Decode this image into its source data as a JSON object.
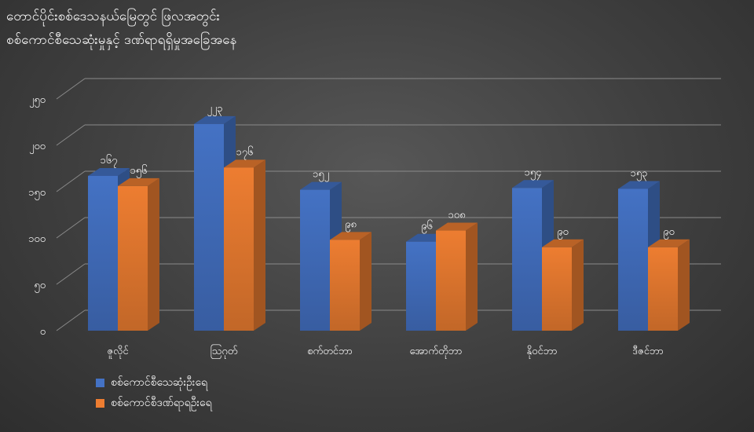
{
  "chart_data": {
    "type": "bar",
    "title": [
      "တောင်ပိုင်းစစ်ဒေသနယ်မြေတွင် ဖြလအတွင်း",
      "စစ်ကောင်စီသေဆုံးမှုနှင့် ဒဏ်ရာရရှိမှုအခြေအနေ"
    ],
    "categories": [
      "ဇူလိုင်",
      "ဩဂုတ်",
      "စက်တင်ဘာ",
      "အောက်တိုဘာ",
      "နိုဝင်ဘာ",
      "ဒီဇင်ဘာ"
    ],
    "series": [
      {
        "name": "စစ်ကောင်စီသေဆုံးဦးရေ",
        "color": "#4472C4",
        "values": [
          167,
          223,
          152,
          96,
          154,
          153
        ],
        "labels": [
          "၁၆၇",
          "၂၂၃",
          "၁၅၂",
          "၉၆",
          "၁၅၄",
          "၁၅၃"
        ]
      },
      {
        "name": "စစ်ကောင်စီဒဏ်ရာရဦးရေ",
        "color": "#ED7D31",
        "values": [
          156,
          176,
          98,
          108,
          90,
          90
        ],
        "labels": [
          "၁၅၆",
          "၁၇၆",
          "၉၈",
          "၁၀၈",
          "၉၀",
          "၉၀"
        ]
      }
    ],
    "ylim": [
      0,
      250
    ],
    "yticks": [
      0,
      50,
      100,
      150,
      200,
      250
    ],
    "ytick_labels": [
      "၀",
      "၅၀",
      "၁၀၀",
      "၁၅၀",
      "၂၀၀",
      "၂၅၀"
    ],
    "grid": true,
    "legend_position": "bottom-left"
  }
}
